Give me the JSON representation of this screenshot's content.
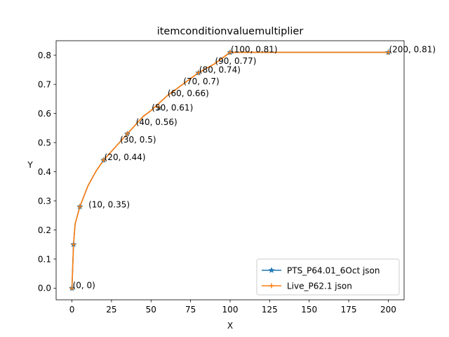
{
  "chart_data": {
    "type": "line",
    "title": "itemconditionvaluemultiplier",
    "xlabel": "X",
    "ylabel": "Y",
    "xlim": [
      -10,
      210
    ],
    "ylim": [
      -0.04,
      0.85
    ],
    "xticks": [
      0,
      25,
      50,
      75,
      100,
      125,
      150,
      175,
      200
    ],
    "yticks": [
      0.0,
      0.1,
      0.2,
      0.3,
      0.4,
      0.5,
      0.6,
      0.7,
      0.8
    ],
    "ytick_labels": [
      "0.0",
      "0.1",
      "0.2",
      "0.3",
      "0.4",
      "0.5",
      "0.6",
      "0.7",
      "0.8"
    ],
    "grid": false,
    "legend_position": "bottom-right",
    "line_points": [
      [
        0,
        0
      ],
      [
        1,
        0.15
      ],
      [
        2,
        0.22
      ],
      [
        5,
        0.28
      ],
      [
        10,
        0.35
      ],
      [
        15,
        0.4
      ],
      [
        20,
        0.44
      ],
      [
        30,
        0.5
      ],
      [
        35,
        0.53
      ],
      [
        40,
        0.56
      ],
      [
        45,
        0.59
      ],
      [
        50,
        0.61
      ],
      [
        60,
        0.66
      ],
      [
        70,
        0.7
      ],
      [
        80,
        0.74
      ],
      [
        90,
        0.77
      ],
      [
        100,
        0.81
      ],
      [
        200,
        0.81
      ]
    ],
    "series": [
      {
        "name": "PTS_P64.01_6Oct json",
        "color": "#1f77b4",
        "marker": "star",
        "marker_points": [
          [
            0,
            0
          ],
          [
            1,
            0.15
          ],
          [
            5,
            0.28
          ],
          [
            20,
            0.44
          ],
          [
            35,
            0.53
          ],
          [
            55,
            0.62
          ],
          [
            80,
            0.74
          ],
          [
            100,
            0.81
          ],
          [
            200,
            0.81
          ]
        ]
      },
      {
        "name": "Live_P62.1 json",
        "color": "#ff7f0e",
        "marker": "plus",
        "marker_points": [
          [
            0,
            0
          ],
          [
            1,
            0.15
          ],
          [
            5,
            0.28
          ],
          [
            20,
            0.44
          ],
          [
            35,
            0.53
          ],
          [
            55,
            0.62
          ],
          [
            80,
            0.74
          ],
          [
            100,
            0.81
          ],
          [
            200,
            0.81
          ]
        ]
      }
    ],
    "annotations": [
      {
        "text": "(0, 0)",
        "x": 0,
        "y": 0
      },
      {
        "text": "(10, 0.35)",
        "x": 10,
        "y": 0.35
      },
      {
        "text": "(20, 0.44)",
        "x": 20,
        "y": 0.44
      },
      {
        "text": "(30, 0.5)",
        "x": 30,
        "y": 0.5
      },
      {
        "text": "(40, 0.56)",
        "x": 40,
        "y": 0.56
      },
      {
        "text": "(50, 0.61)",
        "x": 50,
        "y": 0.61
      },
      {
        "text": "(60, 0.66)",
        "x": 60,
        "y": 0.66
      },
      {
        "text": "(70, 0.7)",
        "x": 70,
        "y": 0.7
      },
      {
        "text": "(80, 0.74)",
        "x": 80,
        "y": 0.74
      },
      {
        "text": "(90, 0.77)",
        "x": 90,
        "y": 0.77
      },
      {
        "text": "(100, 0.81)",
        "x": 100,
        "y": 0.81
      },
      {
        "text": "(200, 0.81)",
        "x": 200,
        "y": 0.81
      }
    ]
  }
}
